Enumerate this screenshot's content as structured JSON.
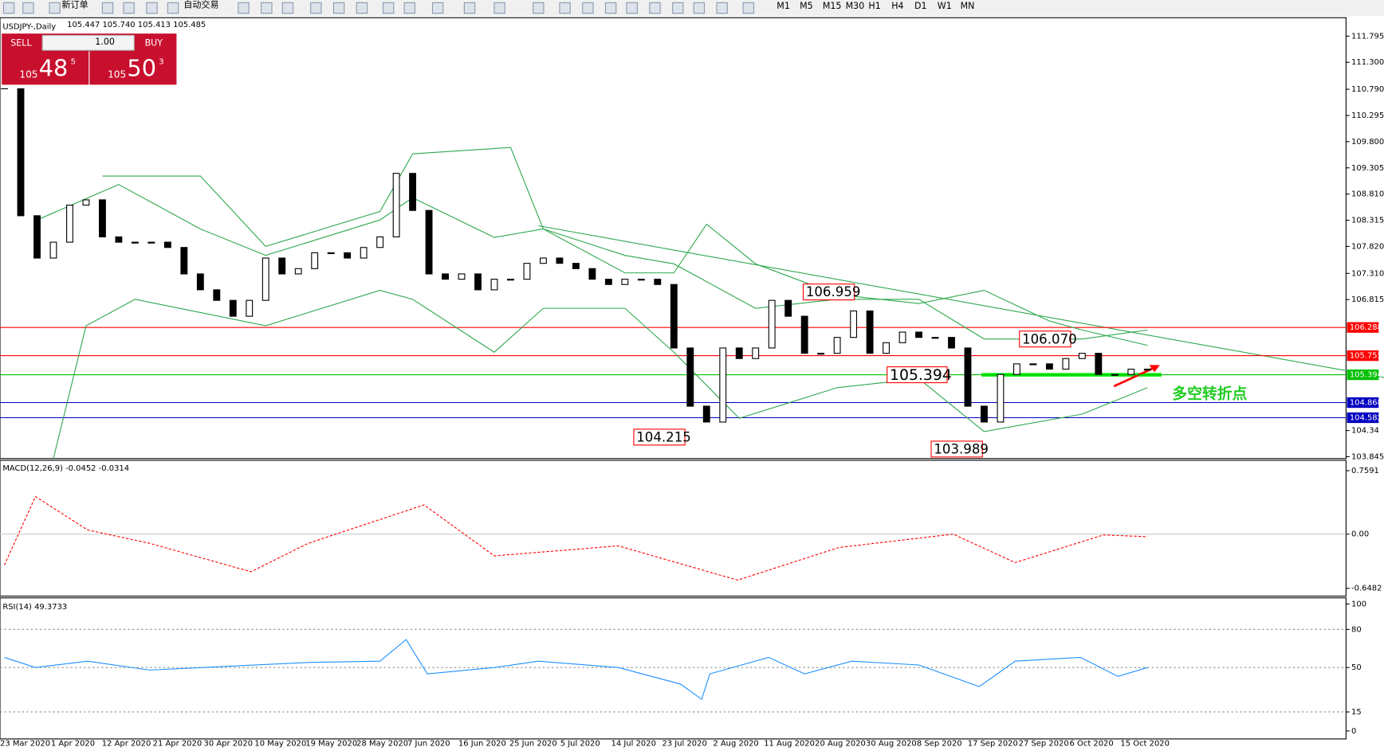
{
  "toolbar": {
    "new_order": "新订单",
    "auto_trading": "自动交易",
    "timeframes": [
      "M1",
      "M5",
      "M15",
      "M30",
      "H1",
      "H4",
      "D1",
      "W1",
      "MN"
    ]
  },
  "trade_panel": {
    "sell": "SELL",
    "lot": "1.00",
    "buy": "BUY",
    "sell_big": "105",
    "sell_digits": "48",
    "sell_small": "5",
    "buy_big": "105",
    "buy_digits": "50",
    "buy_small": "3"
  },
  "chart_data": [
    {
      "type": "candlestick",
      "title": "USDJPY-,Daily",
      "quote": "105.447 105.740 105.413 105.485",
      "closes": [
        110.8,
        108.4,
        107.6,
        107.9,
        108.6,
        108.7,
        108.0,
        107.9,
        107.9,
        107.9,
        107.8,
        107.3,
        107.0,
        106.8,
        106.5,
        106.8,
        107.6,
        107.3,
        107.4,
        107.7,
        107.7,
        107.6,
        107.8,
        108.0,
        109.2,
        108.5,
        107.3,
        107.2,
        107.3,
        107.0,
        107.2,
        107.2,
        107.5,
        107.6,
        107.5,
        107.4,
        107.2,
        107.1,
        107.2,
        107.2,
        107.1,
        105.9,
        104.8,
        104.5,
        105.9,
        105.7,
        105.9,
        106.8,
        106.5,
        105.8,
        105.8,
        106.1,
        106.6,
        105.8,
        106.0,
        106.2,
        106.1,
        106.1,
        105.9,
        104.8,
        104.5,
        105.4,
        105.6,
        105.6,
        105.5,
        105.7,
        105.8,
        105.4,
        105.4,
        105.5,
        105.5
      ],
      "ylim": [
        103.81,
        112.11
      ],
      "yticks": [
        111.795,
        {
          "value": 111.3,
          "label": "111.300"
        },
        {
          "value": 110.79,
          "label": "110.790"
        },
        110.295,
        {
          "value": 109.8,
          "label": "109.800"
        },
        109.305,
        {
          "value": 108.81,
          "label": "108.810"
        },
        108.315,
        {
          "value": 107.82,
          "label": "107.820"
        },
        {
          "value": 107.31,
          "label": "107.310"
        },
        106.815,
        104.34,
        103.845
      ],
      "levels": [
        {
          "value": 106.288,
          "color": "#ff0000"
        },
        {
          "value": 105.755,
          "color": "#ff0000"
        },
        {
          "value": 105.394,
          "color": "#00c000"
        },
        {
          "value": 104.868,
          "color": "#0000c0"
        },
        {
          "value": 104.582,
          "color": "#0000c0"
        }
      ],
      "bands": {
        "color": "#2fa84f",
        "upper": {
          "idx": [
            6,
            12,
            16,
            23,
            25,
            31,
            33,
            38,
            41,
            43,
            46,
            51,
            56,
            60,
            64,
            66,
            70
          ],
          "values": [
            109.15,
            109.15,
            107.82,
            108.48,
            109.57,
            109.69,
            108.15,
            107.32,
            107.32,
            108.24,
            107.49,
            106.91,
            106.74,
            106.99,
            106.41,
            106.24,
            105.95
          ]
        },
        "middle": {
          "idx": [
            2,
            7,
            12,
            16,
            23,
            25,
            30,
            33,
            38,
            41,
            46,
            51,
            56,
            60,
            66,
            70
          ],
          "values": [
            108.32,
            108.99,
            108.15,
            107.65,
            108.32,
            108.74,
            107.99,
            108.15,
            107.65,
            107.49,
            106.65,
            106.82,
            106.82,
            106.07,
            106.07,
            106.24
          ]
        },
        "lower": {
          "idx": [
            3,
            5,
            8,
            12,
            16,
            23,
            25,
            30,
            33,
            38,
            41,
            45,
            51,
            56,
            60,
            66,
            70
          ],
          "values": [
            103.81,
            106.32,
            106.82,
            106.57,
            106.32,
            106.99,
            106.82,
            105.82,
            106.65,
            106.65,
            105.82,
            104.57,
            105.15,
            105.32,
            104.32,
            104.65,
            105.15
          ]
        }
      },
      "annotations": [
        106.959,
        {
          "value": 106.07,
          "label": "106.070"
        },
        105.394,
        104.215,
        103.989
      ],
      "note": "多空转折点",
      "x_labels": [
        "23 Mar 2020",
        "1 Apr 2020",
        "12 Apr 2020",
        "21 Apr 2020",
        "30 Apr 2020",
        "10 May 2020",
        "19 May 2020",
        "28 May 2020",
        "7 Jun 2020",
        "16 Jun 2020",
        "25 Jun 2020",
        "5 Jul 2020",
        "14 Jul 2020",
        "23 Jul 2020",
        "2 Aug 2020",
        "11 Aug 2020",
        "20 Aug 2020",
        "30 Aug 2020",
        "8 Sep 2020",
        "17 Sep 2020",
        "27 Sep 2020",
        "6 Oct 2020",
        "15 Oct 2020"
      ]
    },
    {
      "type": "line",
      "title": "MACD(12,26,9) -0.0452 -0.0314",
      "ylim": [
        -0.72,
        0.82
      ],
      "yticks": [
        0.7591,
        {
          "value": 0,
          "label": "0.00"
        },
        -0.6482
      ],
      "color": "#ff0000",
      "idx": [
        0,
        1.9,
        5.1,
        8.9,
        15.1,
        18.6,
        25.7,
        30,
        37.6,
        44.9,
        51.1,
        58.1,
        61.9,
        67.3,
        70
      ],
      "values": [
        -0.37,
        0.45,
        0.05,
        -0.11,
        -0.45,
        -0.11,
        0.35,
        -0.26,
        -0.14,
        -0.55,
        -0.16,
        0,
        -0.34,
        -0.01,
        -0.03
      ]
    },
    {
      "type": "line",
      "title": "RSI(14) 49.3733",
      "ylim": [
        0,
        100
      ],
      "yticks": [
        100,
        80,
        50,
        15,
        0
      ],
      "color": "#1e90ff",
      "idx": [
        0,
        1.9,
        5.1,
        8.9,
        15.4,
        18.6,
        23,
        24.6,
        25.9,
        30,
        32.7,
        37.6,
        41.4,
        42.7,
        43.2,
        46.8,
        49,
        51.9,
        56,
        59.7,
        61.9,
        65.9,
        68.2,
        70
      ],
      "values": [
        58,
        50,
        55,
        48,
        52,
        54,
        55,
        72,
        45,
        50,
        55,
        50,
        37,
        25,
        45,
        58,
        45,
        55,
        52,
        35,
        55,
        58,
        43,
        50
      ]
    }
  ]
}
